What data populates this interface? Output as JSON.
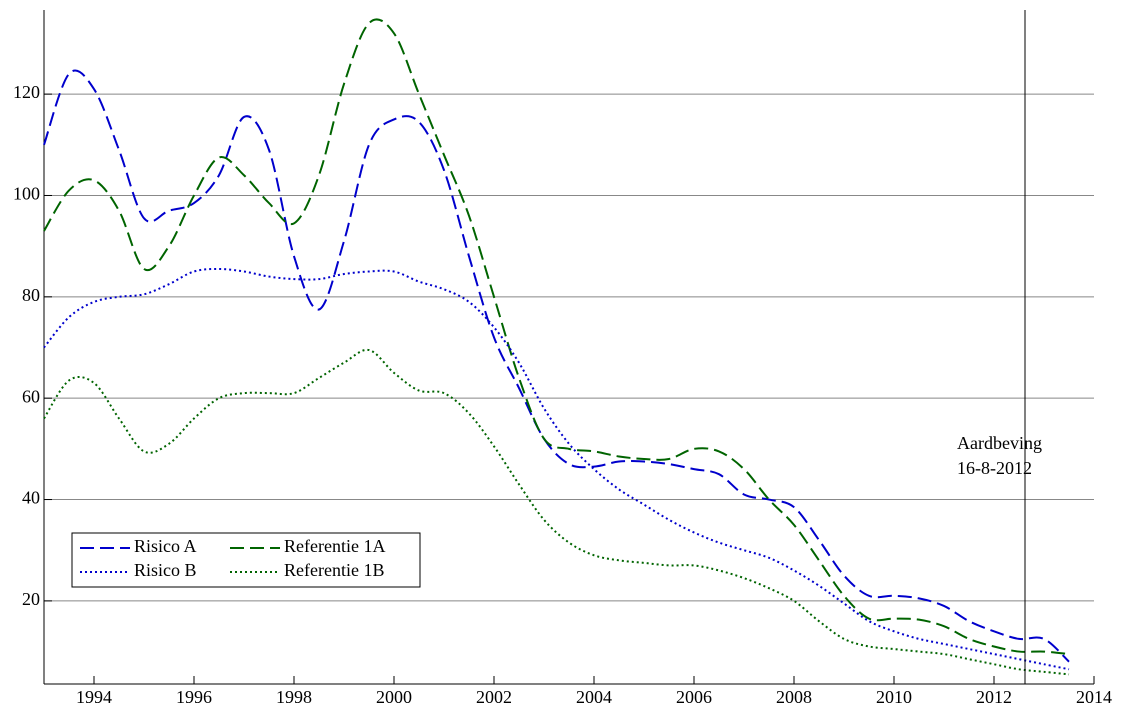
{
  "chart_data": {
    "type": "line",
    "x": [
      1993,
      1993.5,
      1994,
      1994.5,
      1995,
      1995.5,
      1996,
      1996.5,
      1997,
      1997.5,
      1998,
      1998.5,
      1999,
      1999.5,
      2000,
      2000.5,
      2001,
      2001.5,
      2002,
      2002.5,
      2003,
      2003.5,
      2004,
      2004.5,
      2005,
      2005.5,
      2006,
      2006.5,
      2007,
      2007.5,
      2008,
      2008.5,
      2009,
      2009.5,
      2010,
      2010.5,
      2011,
      2011.5,
      2012,
      2012.5,
      2013,
      2013.5
    ],
    "series": [
      {
        "name": "Risico A",
        "color": "#0000cc",
        "dash": "dashed",
        "values": [
          110,
          124,
          121,
          109,
          95.5,
          97,
          98.5,
          104,
          115.5,
          109,
          88,
          77.5,
          91,
          110,
          115,
          114.5,
          105,
          88,
          72,
          62,
          52,
          47,
          46.5,
          47.5,
          47.5,
          47,
          46,
          45,
          41,
          40,
          38.5,
          32,
          25,
          21,
          21,
          20.5,
          19,
          16,
          14,
          12.5,
          12.5,
          8
        ]
      },
      {
        "name": "Referentie 1A",
        "color": "#006400",
        "dash": "dashed",
        "values": [
          93,
          101,
          103,
          97,
          85.5,
          90,
          100,
          107.5,
          104,
          98.5,
          94.5,
          104,
          122,
          134,
          132,
          120,
          108,
          96,
          80,
          64,
          52,
          50,
          49.5,
          48.5,
          48,
          48,
          50,
          49.5,
          46,
          40,
          35,
          28,
          21,
          16.5,
          16.5,
          16.3,
          15,
          12.5,
          11,
          10,
          10,
          9.5
        ]
      },
      {
        "name": "Risico B",
        "color": "#0000cc",
        "dash": "dotted",
        "values": [
          70,
          76,
          79,
          80,
          80.5,
          82.5,
          85,
          85.5,
          85,
          84,
          83.5,
          83.5,
          84.5,
          85,
          85,
          83,
          81.5,
          79,
          74,
          67,
          58,
          51,
          46,
          42,
          39,
          36,
          33.5,
          31.5,
          30,
          28.5,
          26,
          23,
          19.5,
          16,
          14,
          12.5,
          11.5,
          10.5,
          9.5,
          8.5,
          7.5,
          6.5
        ]
      },
      {
        "name": "Referentie 1B",
        "color": "#006400",
        "dash": "dotted",
        "values": [
          56,
          63.5,
          63,
          56,
          49.5,
          51,
          56,
          60,
          61,
          61,
          61,
          64,
          67,
          69.5,
          65,
          61.5,
          61,
          57,
          50.5,
          43,
          36,
          31.5,
          29,
          28,
          27.5,
          27,
          27,
          26,
          24.5,
          22.5,
          20,
          16,
          12.5,
          11,
          10.5,
          10,
          9.5,
          8.5,
          7.5,
          6.5,
          6,
          5.5
        ]
      }
    ],
    "xlim": [
      1993,
      2014
    ],
    "xticks": [
      1994,
      1996,
      1998,
      2000,
      2002,
      2004,
      2006,
      2008,
      2010,
      2012,
      2014
    ],
    "ylim": [
      3.6,
      136.6
    ],
    "yticks": [
      20,
      40,
      60,
      80,
      100,
      120
    ],
    "grid": true,
    "legend": "lower left",
    "event": {
      "x": 2012.62,
      "label": [
        "Aardbeving",
        "16-8-2012"
      ]
    }
  }
}
